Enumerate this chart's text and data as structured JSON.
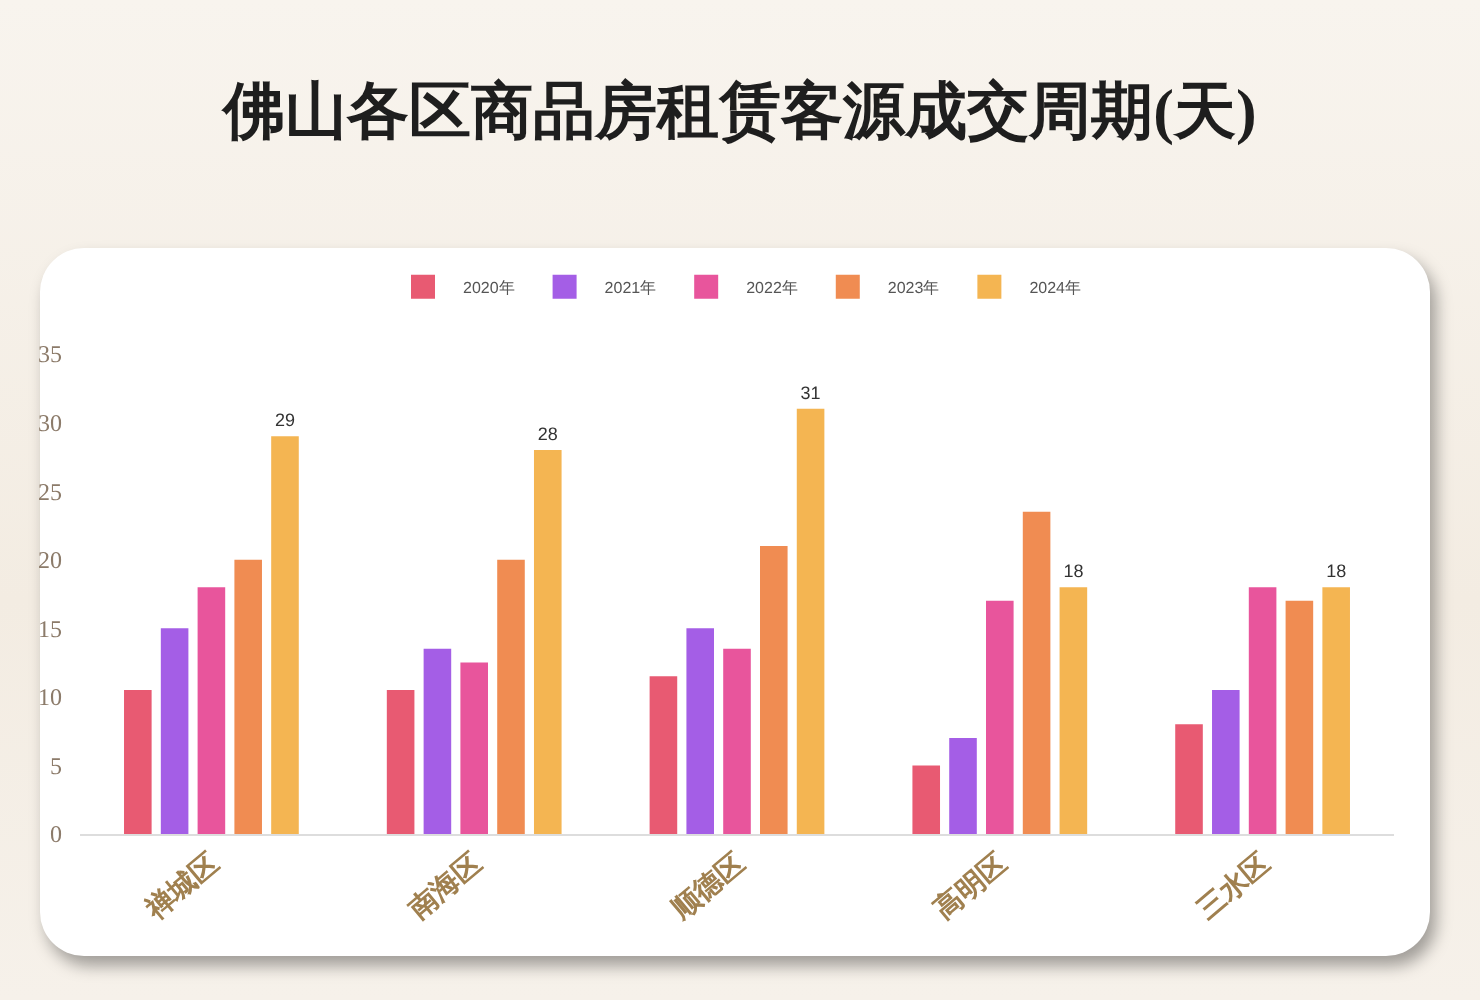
{
  "chart_data": {
    "type": "bar",
    "title": "佛山各区商品房租赁客源成交周期(天)",
    "categories": [
      "禅城区",
      "南海区",
      "顺德区",
      "高明区",
      "三水区"
    ],
    "series": [
      {
        "name": "2020年",
        "color": "#e85a72",
        "values": [
          10.5,
          10.5,
          11.5,
          5,
          8
        ]
      },
      {
        "name": "2021年",
        "color": "#a45ee6",
        "values": [
          15,
          13.5,
          15,
          7,
          10.5
        ]
      },
      {
        "name": "2022年",
        "color": "#e8559c",
        "values": [
          18,
          12.5,
          13.5,
          17,
          18
        ]
      },
      {
        "name": "2023年",
        "color": "#f08c52",
        "values": [
          20,
          20,
          21,
          23.5,
          17
        ]
      },
      {
        "name": "2024年",
        "color": "#f4b552",
        "values": [
          29,
          28,
          31,
          18,
          18
        ],
        "value_labels": [
          "29",
          "28",
          "31",
          "18",
          "18"
        ]
      }
    ],
    "ylim": [
      0,
      35
    ],
    "yticks": [
      0,
      5,
      10,
      15,
      20,
      25,
      30,
      35
    ],
    "grid": false,
    "legend": "top"
  }
}
